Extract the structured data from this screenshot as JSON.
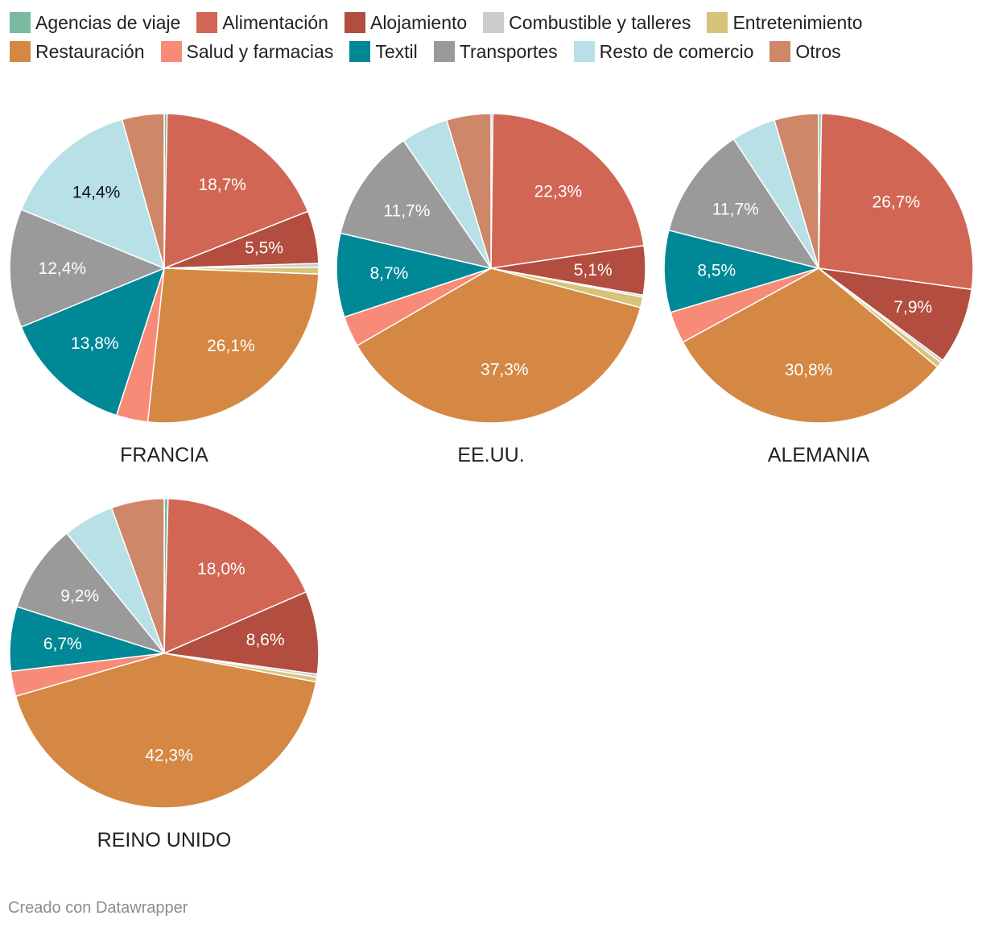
{
  "legend": {
    "rows": [
      [
        {
          "label": "Agencias de viaje",
          "color": "#78bba0"
        },
        {
          "label": "Alimentación",
          "color": "#d16654"
        },
        {
          "label": "Alojamiento",
          "color": "#b24d3f"
        },
        {
          "label": "Combustible y talleres",
          "color": "#cccccc"
        },
        {
          "label": "Entretenimiento",
          "color": "#d7c47b"
        }
      ],
      [
        {
          "label": "Restauración",
          "color": "#d48843"
        },
        {
          "label": "Salud y farmacias",
          "color": "#f78b77"
        },
        {
          "label": "Textil",
          "color": "#008896"
        },
        {
          "label": "Transportes",
          "color": "#9a9a9a"
        },
        {
          "label": "Resto de comercio",
          "color": "#b7e0e7"
        },
        {
          "label": "Otros",
          "color": "#ce8768"
        }
      ]
    ]
  },
  "chart_data": {
    "type": "pie",
    "categories": [
      "Agencias de viaje",
      "Alimentación",
      "Alojamiento",
      "Combustible y talleres",
      "Entretenimiento",
      "Restauración",
      "Salud y farmacias",
      "Textil",
      "Transportes",
      "Resto de comercio",
      "Otros"
    ],
    "colors": [
      "#78bba0",
      "#d16654",
      "#b24d3f",
      "#cccccc",
      "#d7c47b",
      "#d48843",
      "#f78b77",
      "#008896",
      "#9a9a9a",
      "#b7e0e7",
      "#ce8768"
    ],
    "legend_position": "top",
    "charts": [
      {
        "title": "FRANCIA",
        "values": [
          0.3,
          18.7,
          5.5,
          0.4,
          0.7,
          26.1,
          3.3,
          13.8,
          12.4,
          14.4,
          4.4
        ],
        "labels": [
          "",
          "18,7%",
          "5,5%",
          "",
          "",
          "26,1%",
          "",
          "13,8%",
          "12,4%",
          "14,4%",
          ""
        ]
      },
      {
        "title": "EE.UU.",
        "values": [
          0.2,
          22.3,
          5.1,
          0.2,
          1.1,
          37.3,
          3.2,
          8.7,
          11.7,
          4.9,
          4.6
        ],
        "labels": [
          "",
          "22,3%",
          "5,1%",
          "",
          "",
          "37,3%",
          "",
          "8,7%",
          "11,7%",
          "",
          ""
        ]
      },
      {
        "title": "ALEMANIA",
        "values": [
          0.3,
          26.7,
          7.9,
          0.3,
          0.6,
          30.8,
          3.3,
          8.5,
          11.7,
          4.6,
          4.6
        ],
        "labels": [
          "",
          "26,7%",
          "7,9%",
          "",
          "",
          "30,8%",
          "",
          "8,5%",
          "11,7%",
          "",
          ""
        ]
      },
      {
        "title": "REINO UNIDO",
        "values": [
          0.4,
          18.0,
          8.6,
          0.3,
          0.5,
          42.3,
          2.6,
          6.7,
          9.2,
          5.3,
          5.5
        ],
        "labels": [
          "",
          "18,0%",
          "8,6%",
          "",
          "",
          "42,3%",
          "",
          "6,7%",
          "9,2%",
          "",
          ""
        ]
      }
    ]
  },
  "footer": {
    "credit": "Creado con Datawrapper"
  }
}
